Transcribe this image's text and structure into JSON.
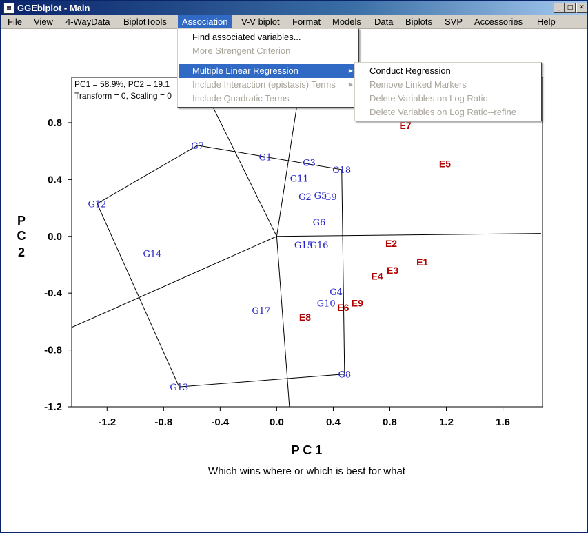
{
  "window": {
    "title": "GGEbiplot - Main",
    "app_icon_glyph": "▦",
    "minimize_glyph": "_",
    "maximize_glyph": "□",
    "close_glyph": "✕"
  },
  "menubar": [
    "File",
    "View",
    "4-WayData",
    "BiplotTools",
    "Association",
    "V-V biplot",
    "Format",
    "Models",
    "Data",
    "Biplots",
    "SVP",
    "Accessories",
    "Help"
  ],
  "association_menu": {
    "items": [
      {
        "label": "Find associated variables...",
        "enabled": true
      },
      {
        "label": "More Strengent Criterion",
        "enabled": false
      },
      {
        "label": "Multiple Linear Regression",
        "enabled": true,
        "submenu": true,
        "highlighted": true
      },
      {
        "label": "Include Interaction (epistasis) Terms",
        "enabled": false,
        "submenu": true
      },
      {
        "label": "Include Quadratic Terms",
        "enabled": false
      }
    ]
  },
  "regression_submenu": {
    "items": [
      {
        "label": "Conduct Regression",
        "enabled": true
      },
      {
        "label": "Remove Linked Markers",
        "enabled": false
      },
      {
        "label": "Delete Variables on Log Ratio",
        "enabled": false
      },
      {
        "label": "Delete Variables on Log Ratio--refine",
        "enabled": false
      }
    ]
  },
  "plot_info": {
    "line1": "PC1 = 58.9%, PC2 = 19.1",
    "line2": "Transform = 0, Scaling = 0"
  },
  "chart_data": {
    "type": "scatter",
    "xlabel": "P C 1",
    "ylabel": "P C 2",
    "caption": "Which wins where or which is best for what",
    "xlim": [
      -1.45,
      1.88
    ],
    "ylim": [
      -1.2,
      1.12
    ],
    "xticks": [
      "-1.2",
      "-0.8",
      "-0.4",
      "0.0",
      "0.4",
      "0.8",
      "1.2",
      "1.6"
    ],
    "yticks": [
      "0.8",
      "0.4",
      "0.0",
      "-0.4",
      "-0.8",
      "-1.2"
    ],
    "genotypes": [
      {
        "name": "G1",
        "x": -0.08,
        "y": 0.56
      },
      {
        "name": "G2",
        "x": 0.2,
        "y": 0.28
      },
      {
        "name": "G3",
        "x": 0.23,
        "y": 0.52
      },
      {
        "name": "G4",
        "x": 0.42,
        "y": -0.39
      },
      {
        "name": "G5",
        "x": 0.31,
        "y": 0.29
      },
      {
        "name": "G6",
        "x": 0.3,
        "y": 0.1
      },
      {
        "name": "G7",
        "x": -0.56,
        "y": 0.64
      },
      {
        "name": "G8",
        "x": 0.48,
        "y": -0.97
      },
      {
        "name": "G9",
        "x": 0.38,
        "y": 0.28
      },
      {
        "name": "G10",
        "x": 0.35,
        "y": -0.47
      },
      {
        "name": "G11",
        "x": 0.16,
        "y": 0.41
      },
      {
        "name": "G12",
        "x": -1.27,
        "y": 0.23
      },
      {
        "name": "G13",
        "x": -0.69,
        "y": -1.06
      },
      {
        "name": "G14",
        "x": -0.88,
        "y": -0.12
      },
      {
        "name": "G15",
        "x": 0.19,
        "y": -0.06
      },
      {
        "name": "G16",
        "x": 0.3,
        "y": -0.06
      },
      {
        "name": "G17",
        "x": -0.11,
        "y": -0.52
      },
      {
        "name": "G18",
        "x": 0.46,
        "y": 0.47
      }
    ],
    "environments": [
      {
        "name": "E1",
        "x": 1.03,
        "y": -0.18
      },
      {
        "name": "E2",
        "x": 0.81,
        "y": -0.05
      },
      {
        "name": "E3",
        "x": 0.82,
        "y": -0.24
      },
      {
        "name": "E4",
        "x": 0.71,
        "y": -0.28
      },
      {
        "name": "E5",
        "x": 1.19,
        "y": 0.51
      },
      {
        "name": "E6",
        "x": 0.47,
        "y": -0.5
      },
      {
        "name": "E7",
        "x": 0.91,
        "y": 0.78
      },
      {
        "name": "E8",
        "x": 0.2,
        "y": -0.57
      },
      {
        "name": "E9",
        "x": 0.57,
        "y": -0.47
      }
    ],
    "hull": [
      "G7",
      "G18",
      "G8",
      "G13",
      "G12"
    ],
    "sector_lines": [
      {
        "x": -0.52,
        "y": 1.05
      },
      {
        "x": 0.16,
        "y": 1.03
      },
      {
        "x": 1.87,
        "y": 0.02
      },
      {
        "x": 0.09,
        "y": -1.2
      },
      {
        "x": -1.47,
        "y": -0.65
      }
    ]
  }
}
